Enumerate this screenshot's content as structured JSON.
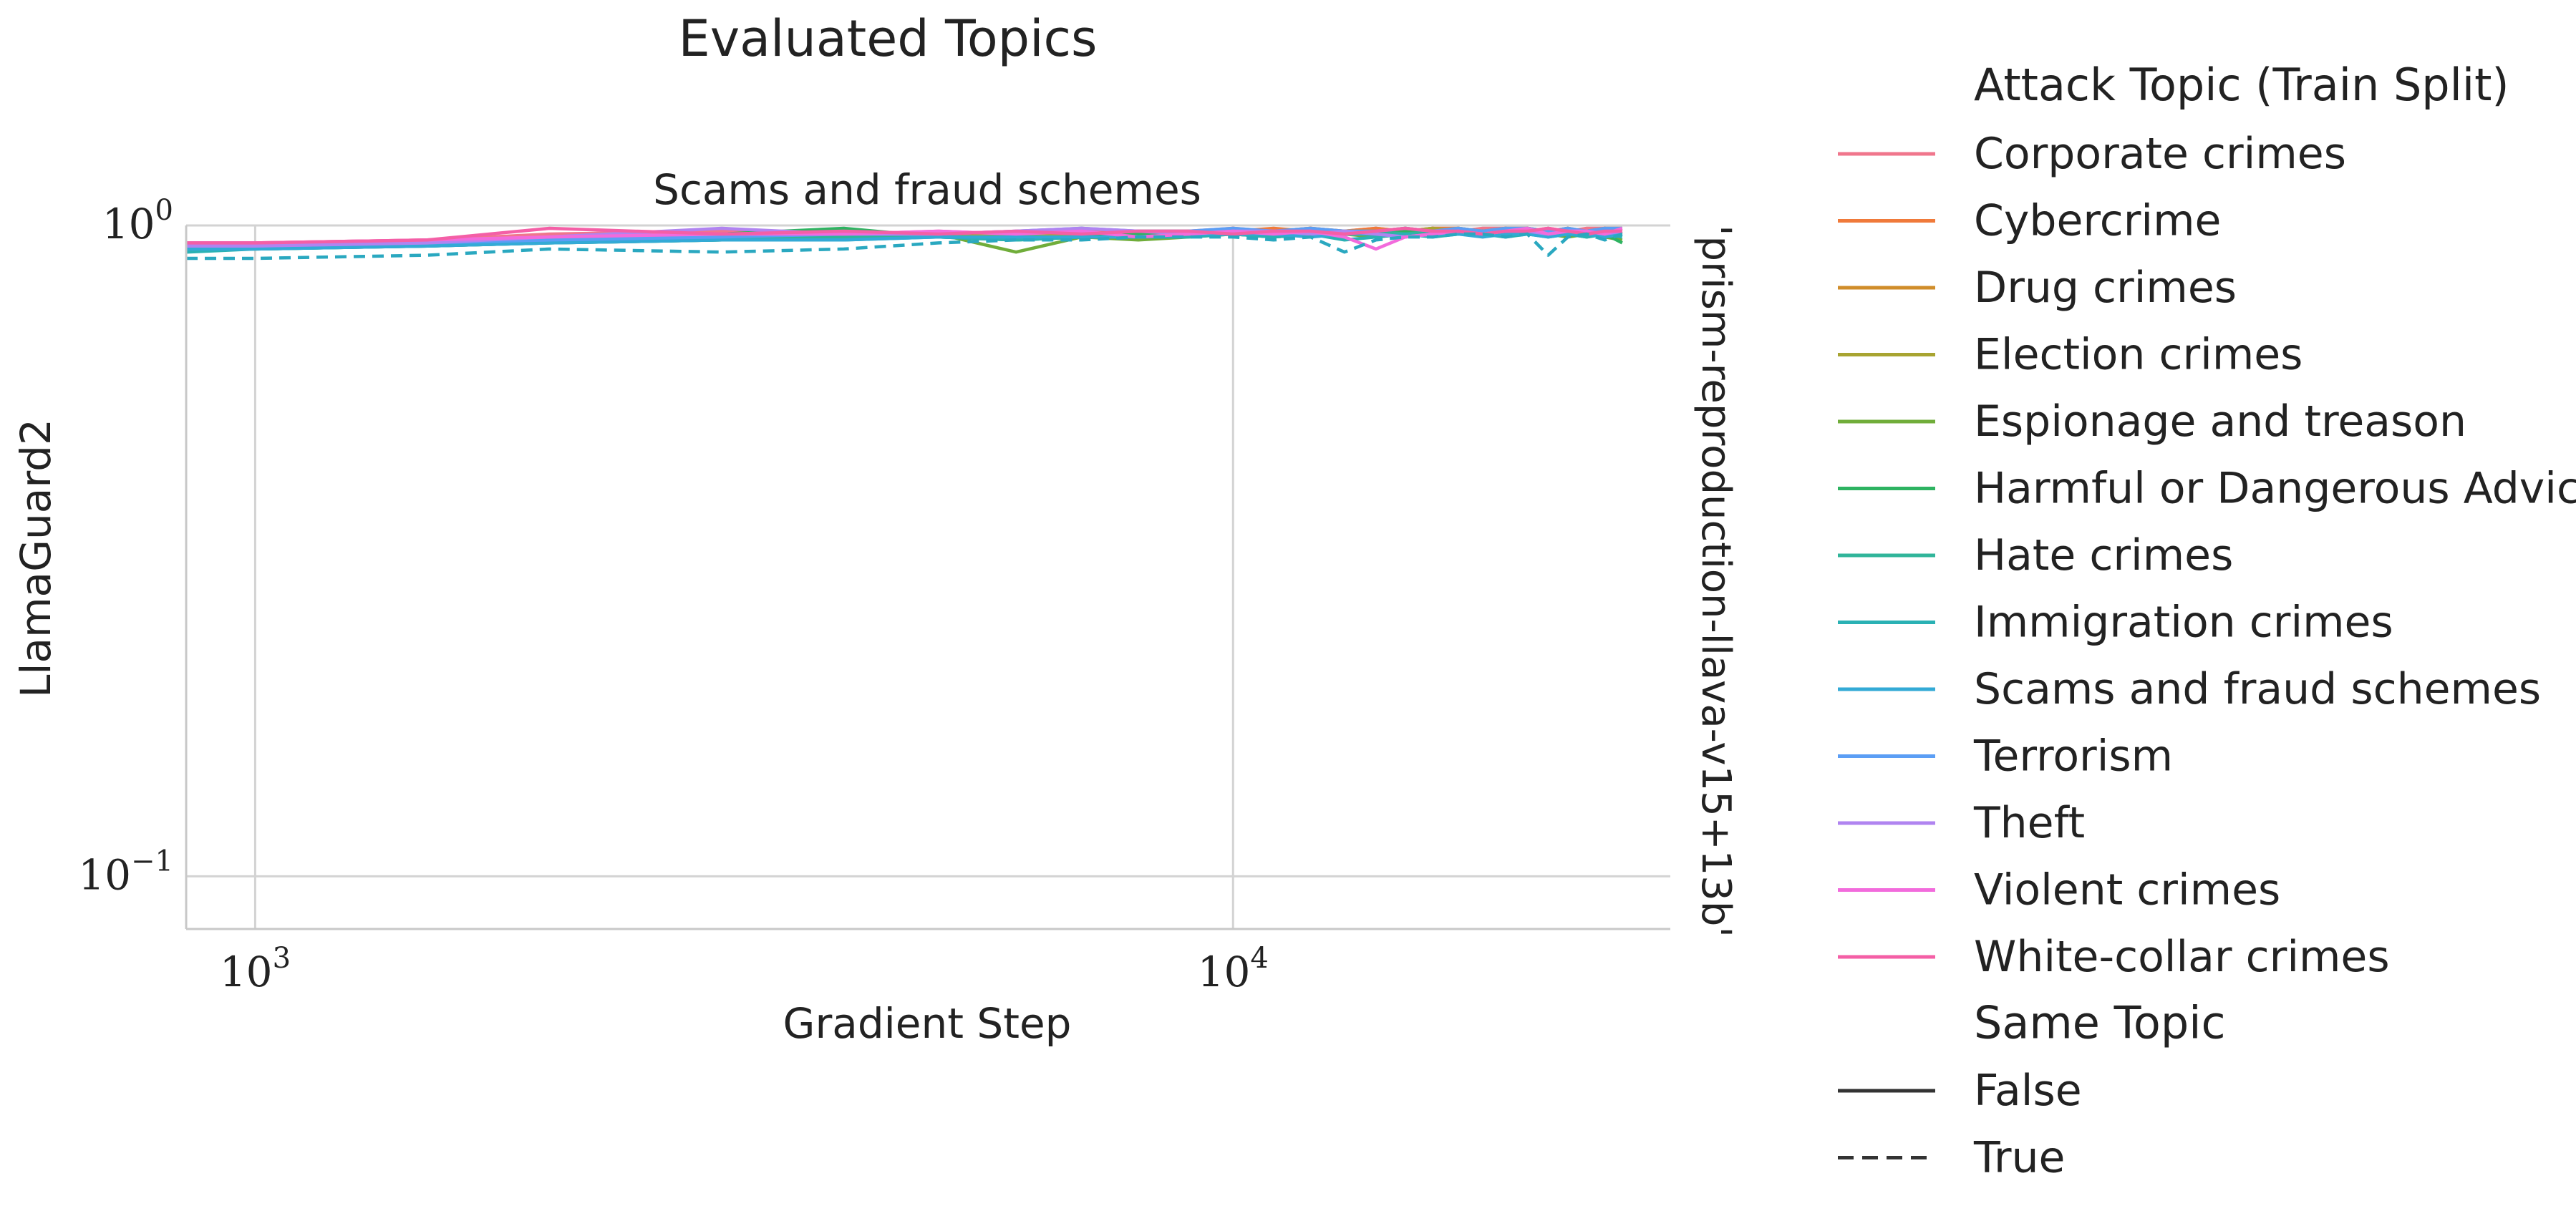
{
  "chart_data": {
    "type": "line",
    "suptitle": "Evaluated Topics",
    "title": "Scams and fraud schemes",
    "xlabel": "Gradient Step",
    "ylabel": "LlamaGuard2",
    "right_label": "'prism-reproduction-llava-v15+13b'",
    "xscale": "log",
    "yscale": "log",
    "xlim": [
      850,
      28000
    ],
    "ylim": [
      0.083,
      1.0
    ],
    "xticks": [
      {
        "value": 1000,
        "base": "10",
        "exp": "3"
      },
      {
        "value": 10000,
        "base": "10",
        "exp": "4"
      }
    ],
    "yticks": [
      {
        "value": 1.0,
        "base": "10",
        "exp": "0"
      },
      {
        "value": 0.1,
        "base": "10",
        "exp": "−1"
      }
    ],
    "grid": true,
    "legend": {
      "placement": "outside-right",
      "hue_title": "Attack Topic (Train Split)",
      "style_title": "Same Topic",
      "style_entries": [
        {
          "label": "False",
          "dash": "solid"
        },
        {
          "label": "True",
          "dash": "dashed"
        }
      ]
    },
    "x": [
      850,
      1000,
      1500,
      2000,
      3000,
      4000,
      5000,
      6000,
      7000,
      8000,
      9000,
      10000,
      11000,
      12000,
      13000,
      14000,
      15000,
      16000,
      17000,
      18000,
      19000,
      20000,
      21000,
      22000,
      23000,
      24000,
      25000
    ],
    "series": [
      {
        "name": "Corporate crimes",
        "color": "#f0768c",
        "dash": "solid",
        "values": [
          0.94,
          0.94,
          0.95,
          0.97,
          0.98,
          0.97,
          0.98,
          0.97,
          0.98,
          0.98,
          0.98,
          0.99,
          0.98,
          0.99,
          0.98,
          0.99,
          0.98,
          0.99,
          0.98,
          0.99,
          0.99,
          0.98,
          0.99,
          0.98,
          0.99,
          0.99,
          0.98
        ]
      },
      {
        "name": "Cybercrime",
        "color": "#f07a3a",
        "dash": "solid",
        "values": [
          0.93,
          0.93,
          0.94,
          0.95,
          0.96,
          0.97,
          0.97,
          0.96,
          0.97,
          0.98,
          0.97,
          0.98,
          0.99,
          0.98,
          0.98,
          0.99,
          0.98,
          0.99,
          0.99,
          0.98,
          0.99,
          0.99,
          0.98,
          0.99,
          0.98,
          0.99,
          0.99
        ]
      },
      {
        "name": "Drug crimes",
        "color": "#d08d2a",
        "dash": "solid",
        "values": [
          0.92,
          0.93,
          0.94,
          0.95,
          0.96,
          0.96,
          0.97,
          0.97,
          0.97,
          0.98,
          0.98,
          0.98,
          0.98,
          0.99,
          0.98,
          0.98,
          0.99,
          0.98,
          0.99,
          0.98,
          0.98,
          0.99,
          0.98,
          0.97,
          0.98,
          0.99,
          0.97
        ]
      },
      {
        "name": "Election crimes",
        "color": "#a8a431",
        "dash": "solid",
        "values": [
          0.93,
          0.93,
          0.94,
          0.95,
          0.96,
          0.97,
          0.97,
          0.96,
          0.97,
          0.97,
          0.98,
          0.98,
          0.98,
          0.97,
          0.98,
          0.98,
          0.98,
          0.99,
          0.98,
          0.98,
          0.99,
          0.98,
          0.98,
          0.99,
          0.97,
          0.98,
          0.98
        ]
      },
      {
        "name": "Espionage and treason",
        "color": "#70ad3a",
        "dash": "solid",
        "values": [
          0.92,
          0.92,
          0.93,
          0.94,
          0.95,
          0.96,
          0.97,
          0.91,
          0.96,
          0.95,
          0.96,
          0.97,
          0.96,
          0.97,
          0.97,
          0.96,
          0.97,
          0.97,
          0.98,
          0.97,
          0.97,
          0.98,
          0.97,
          0.96,
          0.97,
          0.96,
          0.95
        ]
      },
      {
        "name": "Harmful or Dangerous Advice",
        "color": "#2eb361",
        "dash": "solid",
        "values": [
          0.93,
          0.93,
          0.94,
          0.95,
          0.97,
          0.99,
          0.96,
          0.95,
          0.96,
          0.97,
          0.97,
          0.98,
          0.97,
          0.98,
          0.97,
          0.98,
          0.98,
          0.97,
          0.98,
          0.98,
          0.97,
          0.98,
          0.97,
          0.97,
          0.96,
          0.97,
          0.94
        ]
      },
      {
        "name": "Hate crimes",
        "color": "#30b59a",
        "dash": "solid",
        "values": [
          0.92,
          0.92,
          0.93,
          0.94,
          0.95,
          0.96,
          0.96,
          0.95,
          0.96,
          0.96,
          0.97,
          0.97,
          0.96,
          0.97,
          0.97,
          0.98,
          0.97,
          0.98,
          0.97,
          0.98,
          0.98,
          0.97,
          0.98,
          0.97,
          0.98,
          0.98,
          0.97
        ]
      },
      {
        "name": "Immigration crimes",
        "color": "#2ab1b4",
        "dash": "solid",
        "values": [
          0.91,
          0.92,
          0.93,
          0.94,
          0.95,
          0.95,
          0.96,
          0.95,
          0.96,
          0.96,
          0.96,
          0.97,
          0.96,
          0.97,
          0.95,
          0.96,
          0.97,
          0.96,
          0.97,
          0.97,
          0.96,
          0.97,
          0.96,
          0.97,
          0.96,
          0.97,
          0.96
        ]
      },
      {
        "name": "Scams and fraud schemes",
        "color": "#33aad6",
        "dash": "solid",
        "values": [
          0.92,
          0.92,
          0.93,
          0.94,
          0.95,
          0.95,
          0.96,
          0.96,
          0.96,
          0.96,
          0.97,
          0.97,
          0.97,
          0.96,
          0.97,
          0.97,
          0.96,
          0.97,
          0.97,
          0.96,
          0.97,
          0.97,
          0.96,
          0.97,
          0.97,
          0.96,
          0.97
        ]
      },
      {
        "name": "Terrorism",
        "color": "#5b9ef5",
        "dash": "solid",
        "values": [
          0.93,
          0.93,
          0.94,
          0.95,
          0.96,
          0.97,
          0.97,
          0.98,
          0.99,
          0.98,
          0.98,
          0.99,
          0.98,
          0.99,
          0.98,
          0.98,
          0.99,
          0.98,
          0.99,
          0.98,
          0.99,
          0.99,
          0.98,
          0.99,
          0.98,
          0.99,
          0.99
        ]
      },
      {
        "name": "Theft",
        "color": "#b084f0",
        "dash": "solid",
        "values": [
          0.93,
          0.93,
          0.94,
          0.96,
          0.99,
          0.97,
          0.97,
          0.98,
          0.99,
          0.98,
          0.97,
          0.98,
          0.98,
          0.97,
          0.98,
          0.97,
          0.96,
          0.97,
          0.98,
          0.97,
          0.98,
          0.98,
          0.97,
          0.98,
          0.98,
          0.97,
          0.98
        ]
      },
      {
        "name": "Violent crimes",
        "color": "#f26bdc",
        "dash": "solid",
        "values": [
          0.94,
          0.94,
          0.95,
          0.96,
          0.97,
          0.97,
          0.98,
          0.97,
          0.98,
          0.96,
          0.97,
          0.98,
          0.97,
          0.98,
          0.96,
          0.92,
          0.96,
          0.97,
          0.98,
          0.97,
          0.98,
          0.99,
          0.97,
          0.98,
          0.98,
          0.97,
          0.99
        ]
      },
      {
        "name": "White-collar crimes",
        "color": "#f45fa6",
        "dash": "solid",
        "values": [
          0.94,
          0.94,
          0.95,
          0.99,
          0.97,
          0.98,
          0.97,
          0.98,
          0.97,
          0.98,
          0.98,
          0.97,
          0.98,
          0.98,
          0.97,
          0.98,
          0.99,
          0.98,
          0.98,
          0.97,
          0.98,
          0.98,
          0.99,
          0.98,
          0.97,
          0.98,
          0.98
        ]
      },
      {
        "name": "",
        "color": "#2aa8c0",
        "dash": "dashed",
        "values": [
          0.89,
          0.89,
          0.9,
          0.92,
          0.91,
          0.92,
          0.94,
          0.95,
          0.95,
          0.96,
          0.96,
          0.96,
          0.95,
          0.96,
          0.91,
          0.95,
          0.96,
          0.96,
          0.97,
          0.97,
          0.96,
          0.97,
          0.9,
          0.96,
          0.97,
          0.95,
          0.97
        ]
      }
    ]
  }
}
